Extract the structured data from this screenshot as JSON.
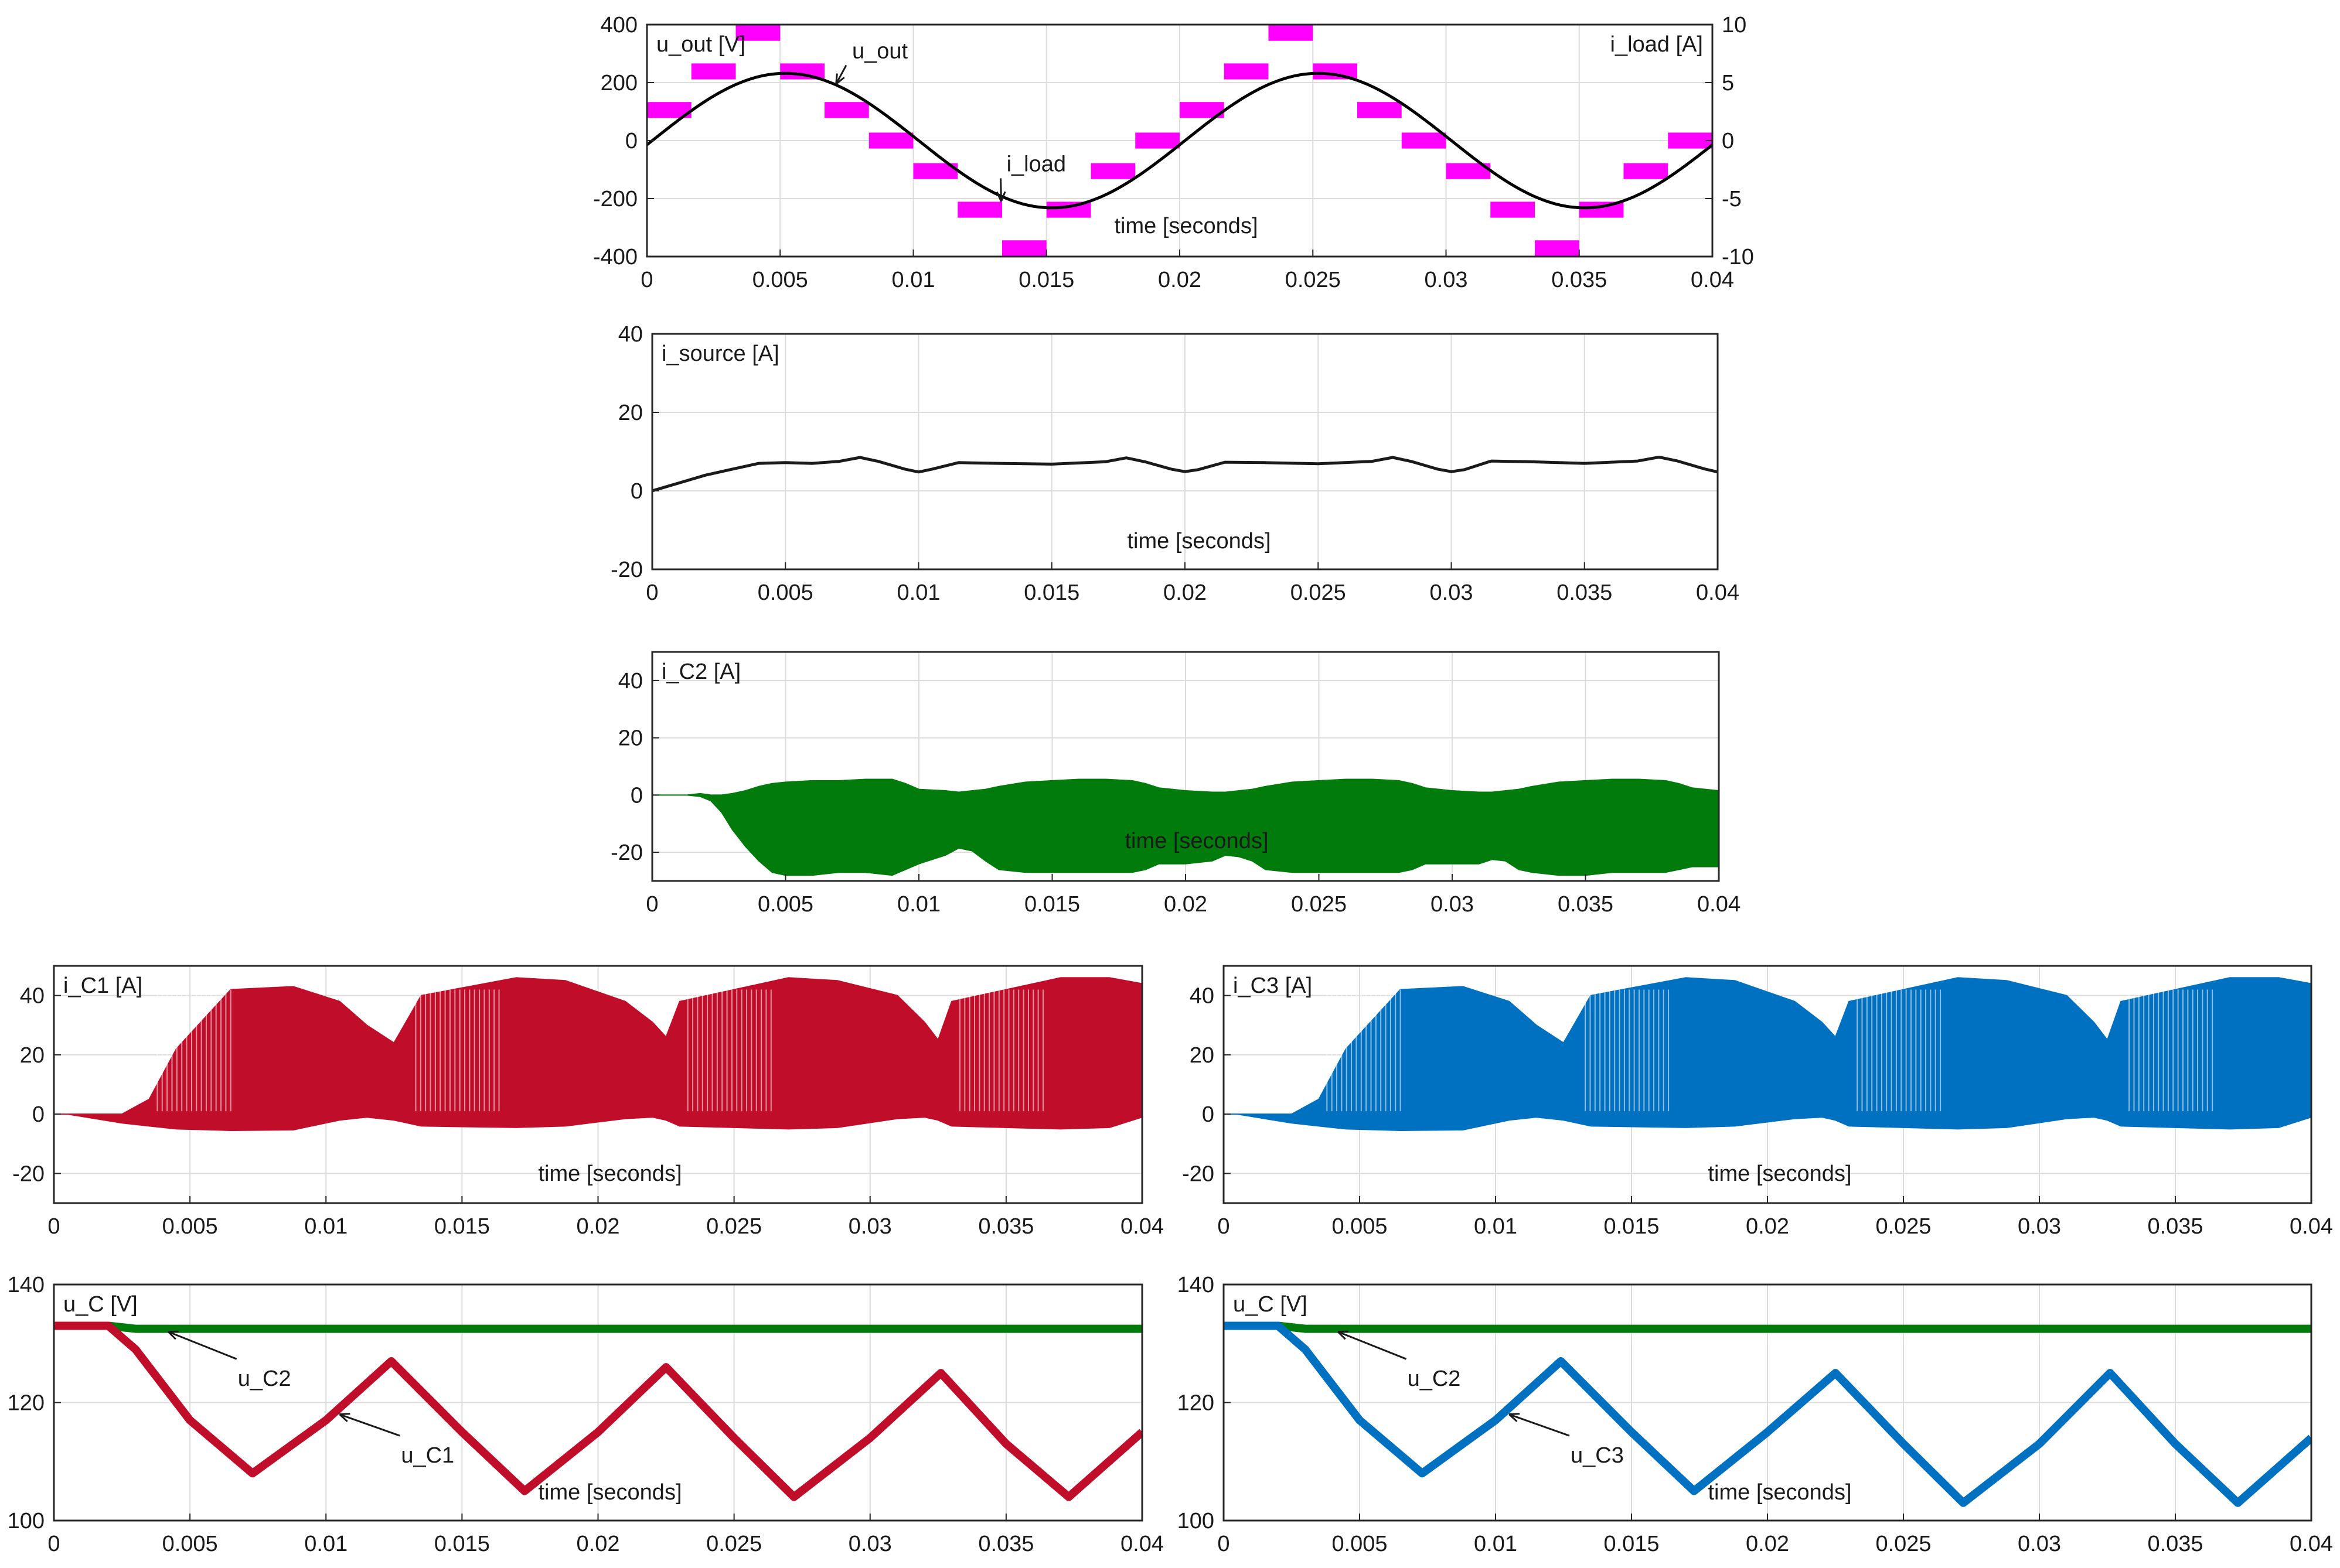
{
  "figure": {
    "type": "multi-panel oscilloscope plot",
    "panels": 7
  },
  "chart_data": [
    {
      "id": "uout",
      "type": "line",
      "panel_label": "u_out  [V]",
      "panel_label_right": "i_load [A]",
      "xlabel": "time [seconds]",
      "xlim": [
        0,
        0.04
      ],
      "ylim": [
        -400,
        400
      ],
      "ylim_right": [
        -10,
        10
      ],
      "xticks": [
        0,
        0.005,
        0.01,
        0.015,
        0.02,
        0.025,
        0.03,
        0.035,
        0.04
      ],
      "xtick_labels": [
        "0",
        "0.005",
        "0.01",
        "0.015",
        "0.02",
        "0.025",
        "0.03",
        "0.035",
        "0.04"
      ],
      "yticks": [
        -400,
        -200,
        0,
        200,
        400
      ],
      "ytick_labels": [
        "-400",
        "-200",
        "0",
        "200",
        "400"
      ],
      "yticks_right": [
        -10,
        -5,
        0,
        5,
        10
      ],
      "ytick_labels_right": [
        "-10",
        "-5",
        "0",
        "5",
        "10"
      ],
      "grid": true,
      "series": [
        {
          "name": "u_out",
          "color": "#ff00ff",
          "style": "staircase band",
          "levels": [
            1,
            2,
            3,
            2,
            1,
            0,
            -1,
            -2,
            -3,
            -2,
            -1,
            0
          ],
          "step_volts": 133,
          "band_volts": 55,
          "period": 0.02
        },
        {
          "name": "i_load",
          "color": "#000000",
          "style": "sine",
          "amplitude": 5.8,
          "period": 0.02,
          "phase_lag": 0.0002
        }
      ],
      "annotations": [
        {
          "text": "u_out",
          "x": 0.0077,
          "y": 280
        },
        {
          "text": "i_load",
          "x": 0.0135,
          "y": -110
        }
      ]
    },
    {
      "id": "isource",
      "type": "line",
      "panel_label": "i_source [A]",
      "xlabel": "time [seconds]",
      "xlim": [
        0,
        0.04
      ],
      "ylim": [
        -20,
        40
      ],
      "xticks": [
        0,
        0.005,
        0.01,
        0.015,
        0.02,
        0.025,
        0.03,
        0.035,
        0.04
      ],
      "xtick_labels": [
        "0",
        "0.005",
        "0.01",
        "0.015",
        "0.02",
        "0.025",
        "0.03",
        "0.035",
        "0.04"
      ],
      "yticks": [
        -20,
        0,
        20,
        40
      ],
      "ytick_labels": [
        "-20",
        "0",
        "20",
        "40"
      ],
      "grid": true,
      "series": [
        {
          "name": "i_source",
          "color": "#1a1a1a",
          "x": [
            0,
            0.0005,
            0.001,
            0.002,
            0.003,
            0.004,
            0.005,
            0.006,
            0.007,
            0.0078,
            0.0085,
            0.0095,
            0.01,
            0.0105,
            0.0115,
            0.013,
            0.015,
            0.017,
            0.0178,
            0.0185,
            0.0195,
            0.02,
            0.0205,
            0.0215,
            0.023,
            0.025,
            0.027,
            0.0278,
            0.0285,
            0.0295,
            0.03,
            0.0305,
            0.0315,
            0.033,
            0.035,
            0.037,
            0.0378,
            0.0385,
            0.0395,
            0.04
          ],
          "y": [
            0,
            1,
            2,
            4,
            5.5,
            7,
            7.2,
            7,
            7.5,
            8.5,
            7.5,
            5.5,
            4.8,
            5.5,
            7.2,
            7,
            6.8,
            7.4,
            8.4,
            7.4,
            5.5,
            4.9,
            5.4,
            7.3,
            7.2,
            6.9,
            7.5,
            8.5,
            7.5,
            5.5,
            4.9,
            5.4,
            7.6,
            7.4,
            7,
            7.6,
            8.6,
            7.6,
            5.6,
            4.8
          ]
        }
      ]
    },
    {
      "id": "ic2",
      "type": "area",
      "panel_label": "i_C2 [A]",
      "xlabel": "time [seconds]",
      "xlim": [
        0,
        0.04
      ],
      "ylim": [
        -30,
        50
      ],
      "xticks": [
        0,
        0.005,
        0.01,
        0.015,
        0.02,
        0.025,
        0.03,
        0.035,
        0.04
      ],
      "xtick_labels": [
        "0",
        "0.005",
        "0.01",
        "0.015",
        "0.02",
        "0.025",
        "0.03",
        "0.035",
        "0.04"
      ],
      "yticks": [
        -20,
        0,
        20,
        40
      ],
      "ytick_labels": [
        "-20",
        "0",
        "20",
        "40"
      ],
      "grid": true,
      "series": [
        {
          "name": "i_C2",
          "color": "#007b0c",
          "x": [
            0,
            0.0013,
            0.0018,
            0.0022,
            0.0026,
            0.003,
            0.0035,
            0.004,
            0.0045,
            0.005,
            0.006,
            0.007,
            0.008,
            0.009,
            0.0095,
            0.01,
            0.011,
            0.0115,
            0.012,
            0.0125,
            0.013,
            0.014,
            0.015,
            0.016,
            0.017,
            0.018,
            0.0185,
            0.019,
            0.02,
            0.021,
            0.0215,
            0.022,
            0.0225,
            0.023,
            0.024,
            0.025,
            0.026,
            0.027,
            0.028,
            0.0285,
            0.029,
            0.03,
            0.031,
            0.0315,
            0.032,
            0.0325,
            0.033,
            0.034,
            0.035,
            0.036,
            0.037,
            0.038,
            0.0385,
            0.039,
            0.04
          ],
          "upper": [
            0,
            0,
            0.5,
            0,
            0,
            0.5,
            1.5,
            3,
            4,
            4.5,
            5,
            5,
            5.5,
            5.5,
            4,
            2,
            1.5,
            1,
            1.5,
            2,
            3,
            4.5,
            5,
            5.5,
            5.5,
            5,
            4,
            2.5,
            1.5,
            1,
            1,
            1.5,
            2,
            3,
            4.5,
            5,
            5.5,
            5.5,
            5,
            4,
            2.5,
            1.5,
            1,
            1,
            1.5,
            2,
            3,
            4.5,
            5,
            5.5,
            5.5,
            5,
            4,
            2.5,
            1.5
          ],
          "lower": [
            0,
            0,
            -0.5,
            -2,
            -6,
            -12,
            -18,
            -23,
            -27,
            -28,
            -28,
            -27,
            -27,
            -28,
            -26,
            -24,
            -21,
            -18.5,
            -19.5,
            -23,
            -26,
            -27,
            -27,
            -27,
            -27,
            -27,
            -26,
            -24,
            -24,
            -23,
            -21,
            -21.5,
            -23,
            -26,
            -27,
            -27,
            -27,
            -27,
            -27,
            -26,
            -24,
            -24,
            -24,
            -22.5,
            -23,
            -26,
            -27,
            -28,
            -28,
            -27,
            -27,
            -27,
            -26,
            -25,
            -25
          ]
        }
      ]
    },
    {
      "id": "ic1",
      "type": "area",
      "panel_label": "i_C1 [A]",
      "xlabel": "time [seconds]",
      "xlim": [
        0,
        0.04
      ],
      "ylim": [
        -30,
        50
      ],
      "xticks": [
        0,
        0.005,
        0.01,
        0.015,
        0.02,
        0.025,
        0.03,
        0.035,
        0.04
      ],
      "xtick_labels": [
        "0",
        "0.005",
        "0.01",
        "0.015",
        "0.02",
        "0.025",
        "0.03",
        "0.035",
        "0.04"
      ],
      "yticks": [
        -20,
        0,
        20,
        40
      ],
      "ytick_labels": [
        "-20",
        "0",
        "20",
        "40"
      ],
      "grid": true,
      "series": [
        {
          "name": "i_C1",
          "color": "#c00d2a",
          "x": [
            0,
            0.0005,
            0.0015,
            0.0025,
            0.0035,
            0.0045,
            0.0065,
            0.0088,
            0.0105,
            0.0115,
            0.0125,
            0.0135,
            0.017,
            0.0188,
            0.021,
            0.022,
            0.0225,
            0.023,
            0.027,
            0.0288,
            0.031,
            0.032,
            0.0325,
            0.033,
            0.037,
            0.0388,
            0.04
          ],
          "upper": [
            0,
            0,
            0,
            0,
            5,
            22,
            42,
            43,
            38,
            30,
            24,
            40,
            46,
            45,
            38,
            31,
            26,
            38,
            46,
            45,
            40,
            31,
            25,
            38,
            46,
            46,
            44
          ],
          "lower": [
            0,
            0,
            -1.5,
            -3,
            -4,
            -5,
            -5.5,
            -5.3,
            -2,
            -1,
            -2,
            -4,
            -4.5,
            -4,
            -1.5,
            -1,
            -2,
            -4,
            -5,
            -4.5,
            -1.5,
            -1,
            -2,
            -4,
            -5,
            -4.5,
            -1
          ]
        }
      ]
    },
    {
      "id": "ic3",
      "type": "area",
      "panel_label": "i_C3 [A]",
      "xlabel": "time [seconds]",
      "xlim": [
        0,
        0.04
      ],
      "ylim": [
        -30,
        50
      ],
      "xticks": [
        0,
        0.005,
        0.01,
        0.015,
        0.02,
        0.025,
        0.03,
        0.035,
        0.04
      ],
      "xtick_labels": [
        "0",
        "0.005",
        "0.01",
        "0.015",
        "0.02",
        "0.025",
        "0.03",
        "0.035",
        "0.04"
      ],
      "yticks": [
        -20,
        0,
        20,
        40
      ],
      "ytick_labels": [
        "-20",
        "0",
        "20",
        "40"
      ],
      "grid": true,
      "series": [
        {
          "name": "i_C3",
          "color": "#0070c0",
          "x": [
            0,
            0.0005,
            0.0015,
            0.0025,
            0.0035,
            0.0045,
            0.0065,
            0.0088,
            0.0105,
            0.0115,
            0.0125,
            0.0135,
            0.017,
            0.0188,
            0.021,
            0.022,
            0.0225,
            0.023,
            0.027,
            0.0288,
            0.031,
            0.032,
            0.0325,
            0.033,
            0.037,
            0.0388,
            0.04
          ],
          "upper": [
            0,
            0,
            0,
            0,
            5,
            22,
            42,
            43,
            38,
            30,
            24,
            40,
            46,
            45,
            38,
            31,
            26,
            38,
            46,
            45,
            40,
            31,
            25,
            38,
            46,
            46,
            44
          ],
          "lower": [
            0,
            0,
            -1.5,
            -3,
            -4,
            -5,
            -5.5,
            -5.3,
            -2,
            -1,
            -2,
            -4,
            -4.5,
            -4,
            -1.5,
            -1,
            -2,
            -4,
            -5,
            -4.5,
            -1.5,
            -1,
            -2,
            -4,
            -5,
            -4.5,
            -1
          ]
        }
      ]
    },
    {
      "id": "uc1",
      "type": "line",
      "panel_label": "u_C [V]",
      "xlabel": "time [seconds]",
      "xlim": [
        0,
        0.04
      ],
      "ylim": [
        100,
        140
      ],
      "xticks": [
        0,
        0.005,
        0.01,
        0.015,
        0.02,
        0.025,
        0.03,
        0.035,
        0.04
      ],
      "xtick_labels": [
        "0",
        "0.005",
        "0.01",
        "0.015",
        "0.02",
        "0.025",
        "0.03",
        "0.035",
        "0.04"
      ],
      "yticks": [
        100,
        120,
        140
      ],
      "ytick_labels": [
        "100",
        "120",
        "140"
      ],
      "grid": true,
      "series": [
        {
          "name": "u_C2",
          "color": "#007b0c",
          "x": [
            0,
            0.002,
            0.003,
            0.04
          ],
          "y": [
            133,
            133,
            132.5,
            132.5
          ]
        },
        {
          "name": "u_C1",
          "color": "#c00d2a",
          "x": [
            0,
            0.002,
            0.003,
            0.005,
            0.0073,
            0.01,
            0.0124,
            0.015,
            0.0173,
            0.02,
            0.0225,
            0.025,
            0.0272,
            0.03,
            0.0326,
            0.035,
            0.0373,
            0.04
          ],
          "y": [
            133,
            133,
            129,
            117,
            108,
            117,
            127,
            115,
            105,
            115,
            126,
            114,
            104,
            114,
            125,
            113,
            104,
            115
          ]
        }
      ],
      "annotations": [
        {
          "text": "u_C2",
          "x": 0.0065,
          "y": 124
        },
        {
          "text": "u_C1",
          "x": 0.0125,
          "y": 111
        }
      ]
    },
    {
      "id": "uc3",
      "type": "line",
      "panel_label": "u_C [V]",
      "xlabel": "time [seconds]",
      "xlim": [
        0,
        0.04
      ],
      "ylim": [
        100,
        140
      ],
      "xticks": [
        0,
        0.005,
        0.01,
        0.015,
        0.02,
        0.025,
        0.03,
        0.035,
        0.04
      ],
      "xtick_labels": [
        "0",
        "0.005",
        "0.01",
        "0.015",
        "0.02",
        "0.025",
        "0.03",
        "0.035",
        "0.04"
      ],
      "yticks": [
        100,
        120,
        140
      ],
      "ytick_labels": [
        "100",
        "120",
        "140"
      ],
      "grid": true,
      "series": [
        {
          "name": "u_C2",
          "color": "#007b0c",
          "x": [
            0,
            0.002,
            0.003,
            0.04
          ],
          "y": [
            133,
            133,
            132.5,
            132.5
          ]
        },
        {
          "name": "u_C3",
          "color": "#0070c0",
          "x": [
            0,
            0.002,
            0.003,
            0.005,
            0.0073,
            0.01,
            0.0124,
            0.015,
            0.0173,
            0.02,
            0.0225,
            0.025,
            0.0272,
            0.03,
            0.0326,
            0.035,
            0.0373,
            0.04
          ],
          "y": [
            133,
            133,
            129,
            117,
            108,
            117,
            127,
            115,
            105,
            115,
            125,
            113,
            103,
            113,
            125,
            113,
            103,
            114
          ]
        }
      ],
      "annotations": [
        {
          "text": "u_C2",
          "x": 0.0065,
          "y": 124
        },
        {
          "text": "u_C3",
          "x": 0.0125,
          "y": 111
        }
      ]
    }
  ]
}
